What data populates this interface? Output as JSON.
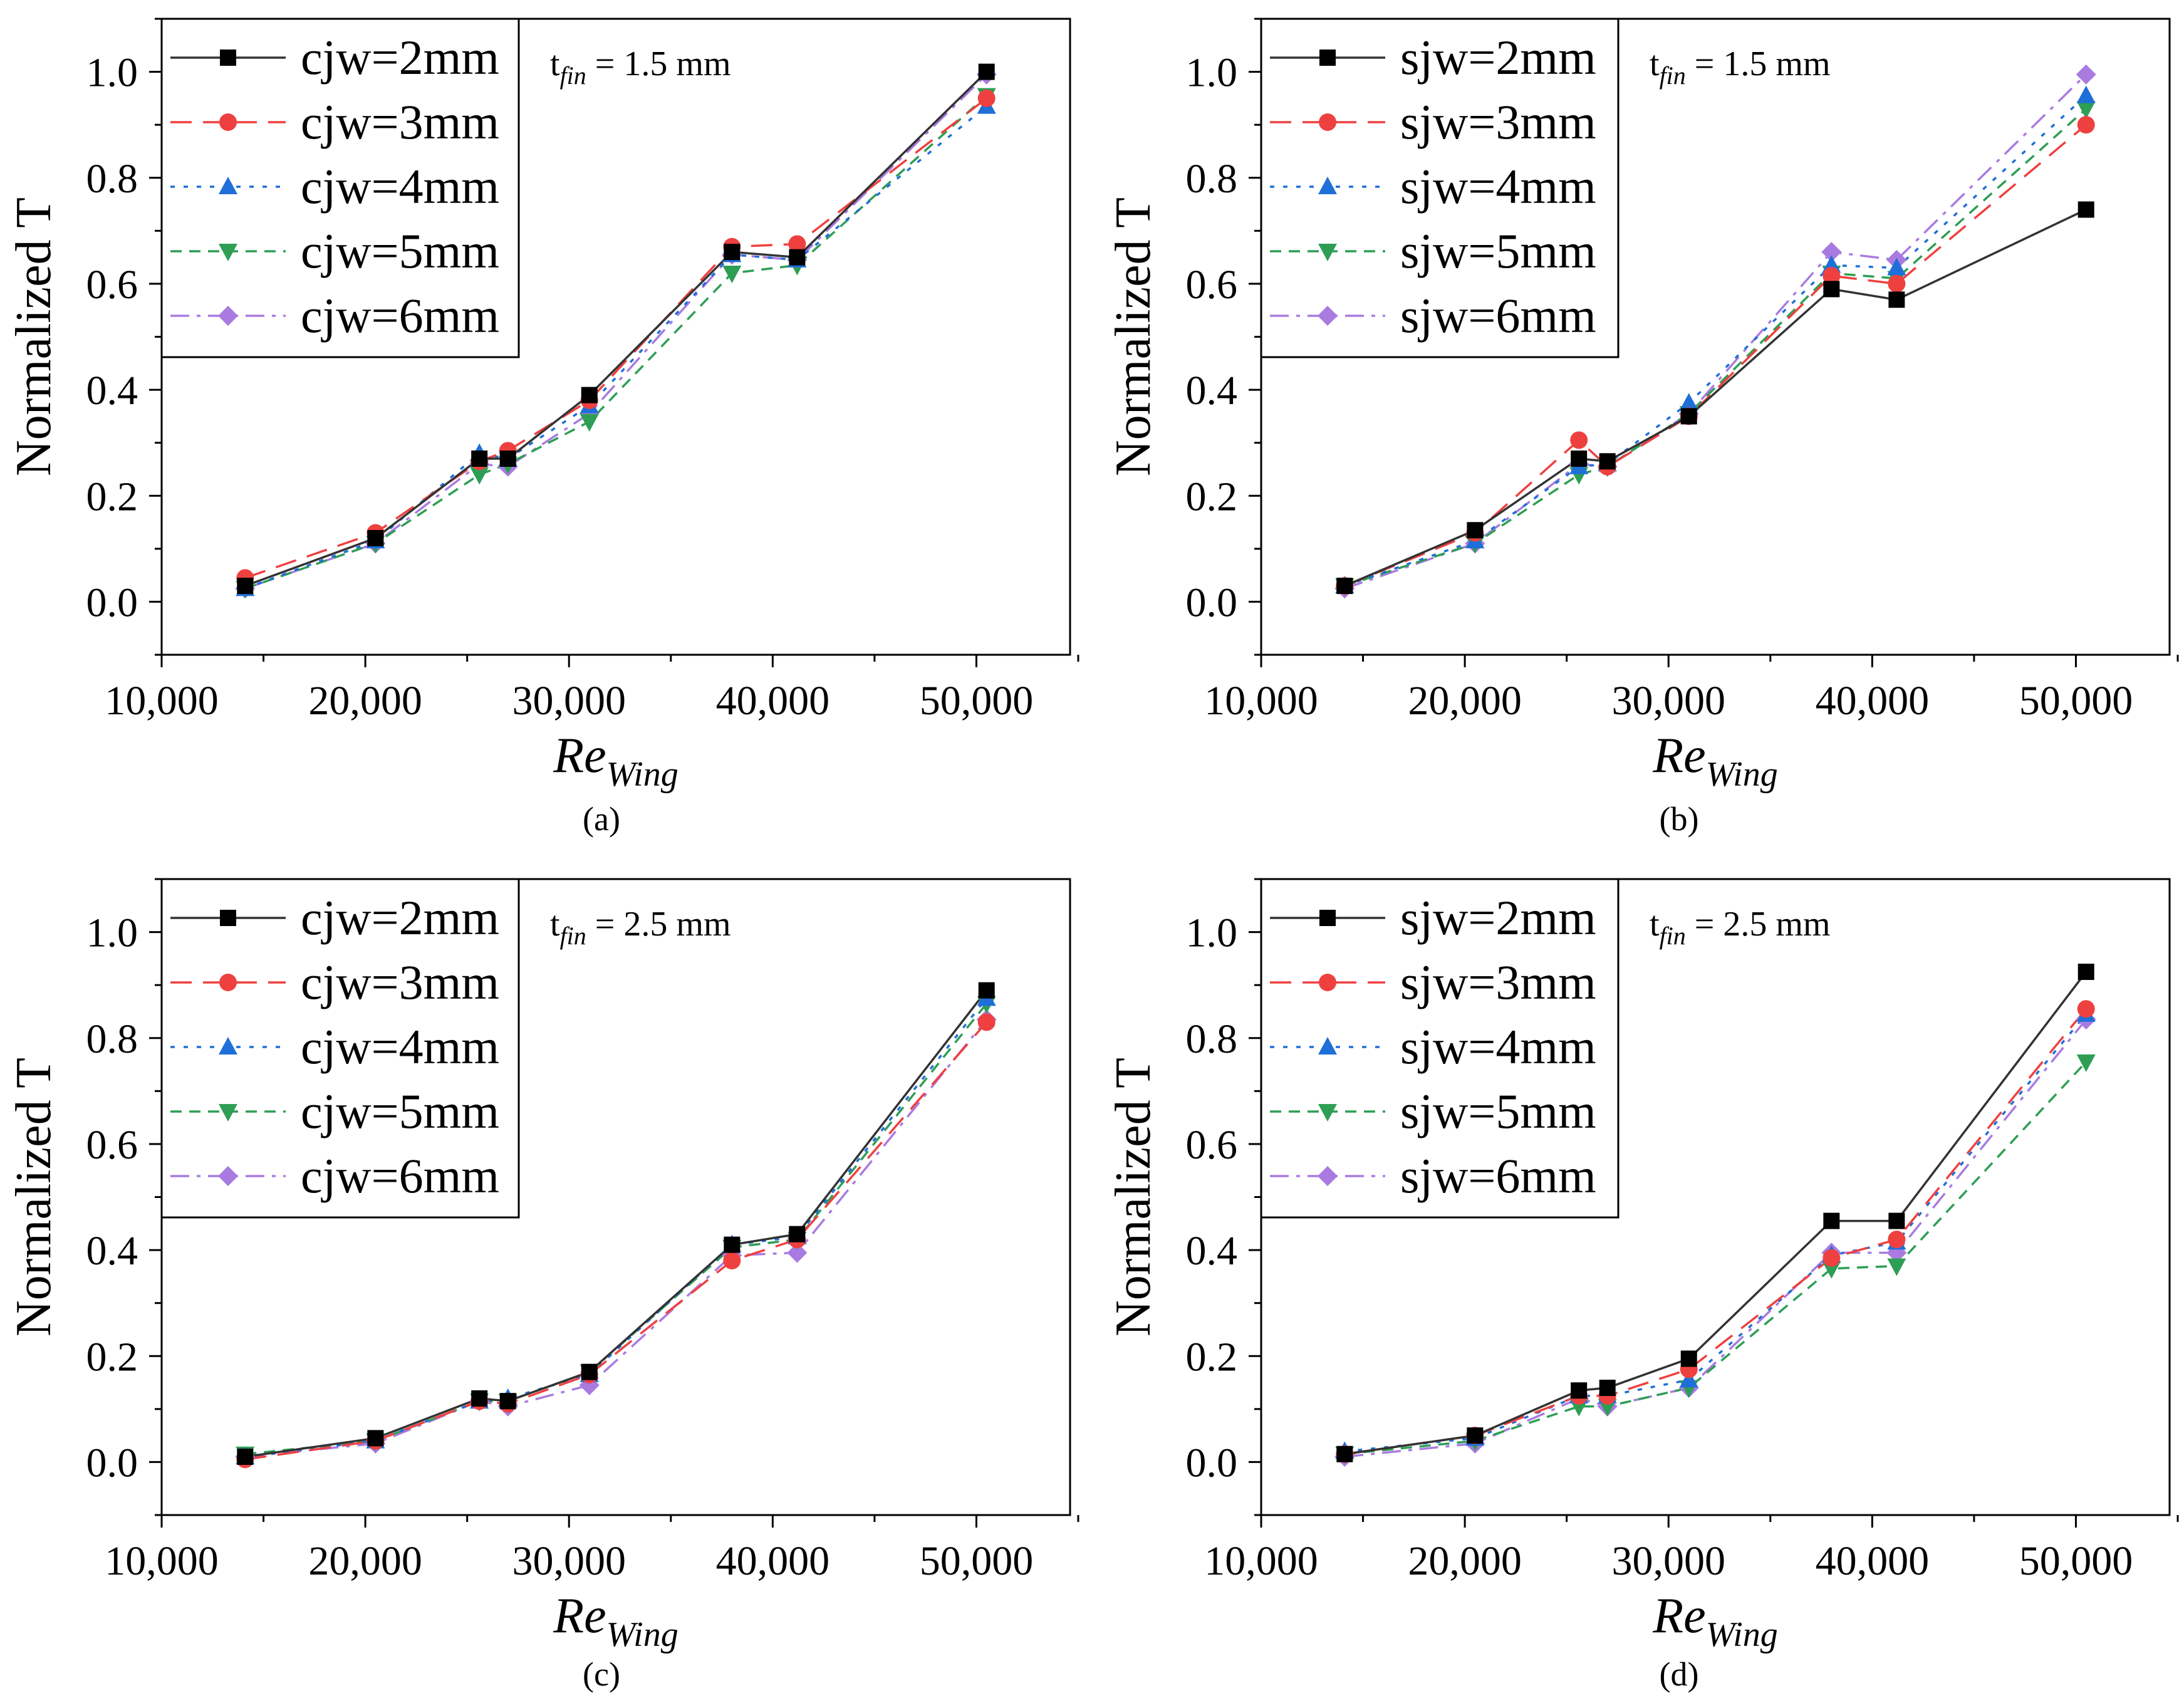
{
  "chart_data": [
    {
      "type": "line",
      "panel_label": "(a)",
      "annotation": {
        "prefix": "t",
        "subscript": "fin",
        "suffix": " = 1.5 mm"
      },
      "xlabel": {
        "main": "Re",
        "subscript": "Wing"
      },
      "ylabel": "Normalized T",
      "xlim": [
        10000,
        54600
      ],
      "ylim": [
        -0.1,
        1.1
      ],
      "xticks": [
        10000,
        20000,
        30000,
        40000,
        50000
      ],
      "xtick_labels": [
        "10,000",
        "20,000",
        "30,000",
        "40,000",
        "50,000"
      ],
      "yticks": [
        0.0,
        0.2,
        0.4,
        0.6,
        0.8,
        1.0
      ],
      "ytick_labels": [
        "0.0",
        "0.2",
        "0.4",
        "0.6",
        "0.8",
        "1.0"
      ],
      "legend_position": "top-left",
      "x": [
        14100,
        20500,
        25600,
        27000,
        31000,
        38000,
        41200,
        50500
      ],
      "series": [
        {
          "name": "cjw=2mm",
          "color": "#333333",
          "dash": "solid",
          "marker": "square",
          "values": [
            0.03,
            0.12,
            0.27,
            0.27,
            0.39,
            0.66,
            0.65,
            1.0
          ]
        },
        {
          "name": "cjw=3mm",
          "color": "#ef4040",
          "dash": "dash",
          "marker": "circle",
          "values": [
            0.045,
            0.13,
            0.265,
            0.285,
            0.38,
            0.67,
            0.675,
            0.95
          ]
        },
        {
          "name": "cjw=4mm",
          "color": "#1f6fd9",
          "dash": "dot",
          "marker": "triangle-up",
          "values": [
            0.025,
            0.115,
            0.28,
            0.27,
            0.37,
            0.655,
            0.645,
            0.935
          ]
        },
        {
          "name": "cjw=5mm",
          "color": "#2e9e55",
          "dash": "shortdash",
          "marker": "triangle-down",
          "values": [
            0.025,
            0.11,
            0.24,
            0.26,
            0.34,
            0.62,
            0.635,
            0.955
          ]
        },
        {
          "name": "cjw=6mm",
          "color": "#a97be0",
          "dash": "dashdot",
          "marker": "diamond",
          "values": [
            0.025,
            0.11,
            0.26,
            0.255,
            0.355,
            0.655,
            0.645,
            0.995
          ]
        }
      ]
    },
    {
      "type": "line",
      "panel_label": "(b)",
      "annotation": {
        "prefix": "t",
        "subscript": "fin",
        "suffix": " = 1.5 mm"
      },
      "xlabel": {
        "main": "Re",
        "subscript": "Wing"
      },
      "ylabel": "Normalized T",
      "xlim": [
        10000,
        54600
      ],
      "ylim": [
        -0.1,
        1.1
      ],
      "xticks": [
        10000,
        20000,
        30000,
        40000,
        50000
      ],
      "xtick_labels": [
        "10,000",
        "20,000",
        "30,000",
        "40,000",
        "50,000"
      ],
      "yticks": [
        0.0,
        0.2,
        0.4,
        0.6,
        0.8,
        1.0
      ],
      "ytick_labels": [
        "0.0",
        "0.2",
        "0.4",
        "0.6",
        "0.8",
        "1.0"
      ],
      "legend_position": "top-left",
      "x": [
        14100,
        20500,
        25600,
        27000,
        31000,
        38000,
        41200,
        50500
      ],
      "series": [
        {
          "name": "sjw=2mm",
          "color": "#333333",
          "dash": "solid",
          "marker": "square",
          "values": [
            0.03,
            0.135,
            0.27,
            0.265,
            0.35,
            0.59,
            0.57,
            0.74
          ]
        },
        {
          "name": "sjw=3mm",
          "color": "#ef4040",
          "dash": "dash",
          "marker": "circle",
          "values": [
            0.03,
            0.13,
            0.305,
            0.255,
            0.35,
            0.615,
            0.6,
            0.9
          ]
        },
        {
          "name": "sjw=4mm",
          "color": "#1f6fd9",
          "dash": "dot",
          "marker": "triangle-up",
          "values": [
            0.03,
            0.115,
            0.255,
            0.26,
            0.375,
            0.635,
            0.63,
            0.955
          ]
        },
        {
          "name": "sjw=5mm",
          "color": "#2e9e55",
          "dash": "shortdash",
          "marker": "triangle-down",
          "values": [
            0.03,
            0.11,
            0.24,
            0.255,
            0.355,
            0.62,
            0.61,
            0.93
          ]
        },
        {
          "name": "sjw=6mm",
          "color": "#a97be0",
          "dash": "dashdot",
          "marker": "diamond",
          "values": [
            0.025,
            0.11,
            0.26,
            0.255,
            0.355,
            0.66,
            0.645,
            0.995
          ]
        }
      ]
    },
    {
      "type": "line",
      "panel_label": "(c)",
      "annotation": {
        "prefix": "t",
        "subscript": "fin",
        "suffix": " = 2.5 mm"
      },
      "xlabel": {
        "main": "Re",
        "subscript": "Wing"
      },
      "ylabel": "Normalized T",
      "xlim": [
        10000,
        54600
      ],
      "ylim": [
        -0.1,
        1.1
      ],
      "xticks": [
        10000,
        20000,
        30000,
        40000,
        50000
      ],
      "xtick_labels": [
        "10,000",
        "20,000",
        "30,000",
        "40,000",
        "50,000"
      ],
      "yticks": [
        0.0,
        0.2,
        0.4,
        0.6,
        0.8,
        1.0
      ],
      "ytick_labels": [
        "0.0",
        "0.2",
        "0.4",
        "0.6",
        "0.8",
        "1.0"
      ],
      "legend_position": "top-left",
      "x": [
        14100,
        20500,
        25600,
        27000,
        31000,
        38000,
        41200,
        50500
      ],
      "series": [
        {
          "name": "cjw=2mm",
          "color": "#333333",
          "dash": "solid",
          "marker": "square",
          "values": [
            0.01,
            0.045,
            0.12,
            0.115,
            0.17,
            0.41,
            0.43,
            0.89
          ]
        },
        {
          "name": "cjw=3mm",
          "color": "#ef4040",
          "dash": "dash",
          "marker": "circle",
          "values": [
            0.005,
            0.04,
            0.115,
            0.11,
            0.165,
            0.38,
            0.42,
            0.83
          ]
        },
        {
          "name": "cjw=4mm",
          "color": "#1f6fd9",
          "dash": "dot",
          "marker": "triangle-up",
          "values": [
            0.01,
            0.04,
            0.115,
            0.12,
            0.165,
            0.41,
            0.425,
            0.875
          ]
        },
        {
          "name": "cjw=5mm",
          "color": "#2e9e55",
          "dash": "shortdash",
          "marker": "triangle-down",
          "values": [
            0.015,
            0.04,
            0.115,
            0.115,
            0.17,
            0.405,
            0.42,
            0.865
          ]
        },
        {
          "name": "cjw=6mm",
          "color": "#a97be0",
          "dash": "dashdot",
          "marker": "diamond",
          "values": [
            0.01,
            0.035,
            0.115,
            0.105,
            0.145,
            0.39,
            0.395,
            0.835
          ]
        }
      ]
    },
    {
      "type": "line",
      "panel_label": "(d)",
      "annotation": {
        "prefix": "t",
        "subscript": "fin",
        "suffix": " = 2.5 mm"
      },
      "xlabel": {
        "main": "Re",
        "subscript": "Wing"
      },
      "ylabel": "Normalized T",
      "xlim": [
        10000,
        54600
      ],
      "ylim": [
        -0.1,
        1.1
      ],
      "xticks": [
        10000,
        20000,
        30000,
        40000,
        50000
      ],
      "xtick_labels": [
        "10,000",
        "20,000",
        "30,000",
        "40,000",
        "50,000"
      ],
      "yticks": [
        0.0,
        0.2,
        0.4,
        0.6,
        0.8,
        1.0
      ],
      "ytick_labels": [
        "0.0",
        "0.2",
        "0.4",
        "0.6",
        "0.8",
        "1.0"
      ],
      "legend_position": "top-left",
      "x": [
        14100,
        20500,
        25600,
        27000,
        31000,
        38000,
        41200,
        50500
      ],
      "series": [
        {
          "name": "sjw=2mm",
          "color": "#333333",
          "dash": "solid",
          "marker": "square",
          "values": [
            0.015,
            0.05,
            0.135,
            0.14,
            0.195,
            0.455,
            0.455,
            0.925
          ]
        },
        {
          "name": "sjw=3mm",
          "color": "#ef4040",
          "dash": "dash",
          "marker": "circle",
          "values": [
            0.015,
            0.05,
            0.125,
            0.125,
            0.175,
            0.385,
            0.42,
            0.855
          ]
        },
        {
          "name": "sjw=4mm",
          "color": "#1f6fd9",
          "dash": "dot",
          "marker": "triangle-up",
          "values": [
            0.02,
            0.045,
            0.125,
            0.125,
            0.155,
            0.39,
            0.415,
            0.845
          ]
        },
        {
          "name": "sjw=5mm",
          "color": "#2e9e55",
          "dash": "shortdash",
          "marker": "triangle-down",
          "values": [
            0.015,
            0.04,
            0.105,
            0.105,
            0.14,
            0.365,
            0.37,
            0.755
          ]
        },
        {
          "name": "sjw=6mm",
          "color": "#a97be0",
          "dash": "dashdot",
          "marker": "diamond",
          "values": [
            0.01,
            0.035,
            0.12,
            0.105,
            0.14,
            0.395,
            0.395,
            0.835
          ]
        }
      ]
    }
  ]
}
